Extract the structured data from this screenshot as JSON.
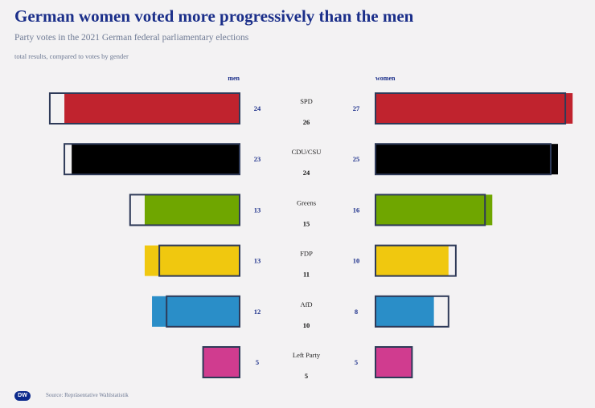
{
  "title": "German women voted more progressively than the men",
  "subtitle": "Party votes in the 2021 German federal parliamentary elections",
  "note": "total results, compared to votes by gender",
  "source": "Source: Repräsentative Wahlstatistik",
  "logo": "DW",
  "chart_data": {
    "type": "bar",
    "title": "German women voted more progressively than the men",
    "left_label": "men",
    "right_label": "women",
    "categories": [
      "SPD",
      "CDU/CSU",
      "Greens",
      "FDP",
      "AfD",
      "Left Party"
    ],
    "series": [
      {
        "name": "men",
        "values": [
          24,
          23,
          13,
          13,
          12,
          5
        ]
      },
      {
        "name": "women",
        "values": [
          27,
          25,
          16,
          10,
          8,
          5
        ]
      },
      {
        "name": "total",
        "values": [
          26,
          24,
          15,
          11,
          10,
          5
        ]
      }
    ],
    "colors": [
      "#c0232e",
      "#000000",
      "#6fa600",
      "#f0c80f",
      "#2a8ec8",
      "#d03c8f"
    ],
    "outline_color": "#2e3a58"
  }
}
